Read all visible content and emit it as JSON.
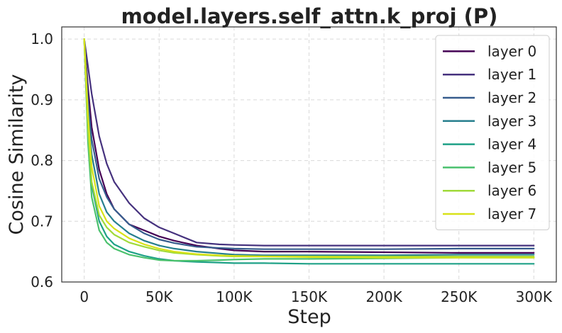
{
  "chart_data": {
    "type": "line",
    "title": "model.layers.self_attn.k_proj (P)",
    "xlabel": "Step",
    "ylabel": "Cosine Similarity",
    "xlim": [
      -15000,
      315000
    ],
    "ylim": [
      0.6,
      1.02
    ],
    "xticks": [
      0,
      50000,
      100000,
      150000,
      200000,
      250000,
      300000
    ],
    "xtick_labels": [
      "0",
      "50K",
      "100K",
      "150K",
      "200K",
      "250K",
      "300K"
    ],
    "yticks": [
      0.6,
      0.7,
      0.8,
      0.9,
      1.0
    ],
    "ytick_labels": [
      "0.6",
      "0.7",
      "0.8",
      "0.9",
      "1.0"
    ],
    "grid": true,
    "legend_position": "top-right",
    "series": [
      {
        "name": "layer 0",
        "color": "#440154",
        "x": [
          0,
          2500,
          5000,
          10000,
          15000,
          20000,
          30000,
          40000,
          50000,
          60000,
          75000,
          90000,
          100000,
          120000,
          150000,
          200000,
          250000,
          300000
        ],
        "y": [
          1.0,
          0.92,
          0.855,
          0.785,
          0.745,
          0.72,
          0.695,
          0.685,
          0.675,
          0.668,
          0.66,
          0.655,
          0.652,
          0.65,
          0.65,
          0.649,
          0.648,
          0.648
        ]
      },
      {
        "name": "layer 1",
        "color": "#46327e",
        "x": [
          0,
          2500,
          5000,
          10000,
          15000,
          20000,
          30000,
          40000,
          50000,
          60000,
          75000,
          90000,
          100000,
          120000,
          150000,
          200000,
          250000,
          300000
        ],
        "y": [
          1.0,
          0.955,
          0.91,
          0.84,
          0.795,
          0.765,
          0.73,
          0.705,
          0.69,
          0.68,
          0.665,
          0.662,
          0.661,
          0.66,
          0.66,
          0.66,
          0.66,
          0.66
        ]
      },
      {
        "name": "layer 2",
        "color": "#365c8d",
        "x": [
          0,
          2500,
          5000,
          10000,
          15000,
          20000,
          30000,
          40000,
          50000,
          60000,
          75000,
          90000,
          100000,
          120000,
          150000,
          200000,
          250000,
          300000
        ],
        "y": [
          1.0,
          0.9,
          0.835,
          0.77,
          0.74,
          0.72,
          0.695,
          0.68,
          0.67,
          0.664,
          0.658,
          0.656,
          0.655,
          0.654,
          0.654,
          0.654,
          0.655,
          0.655
        ]
      },
      {
        "name": "layer 3",
        "color": "#277f8e",
        "x": [
          0,
          2500,
          5000,
          10000,
          15000,
          20000,
          30000,
          40000,
          50000,
          60000,
          75000,
          90000,
          100000,
          120000,
          150000,
          200000,
          250000,
          300000
        ],
        "y": [
          1.0,
          0.88,
          0.81,
          0.745,
          0.715,
          0.7,
          0.68,
          0.668,
          0.66,
          0.655,
          0.65,
          0.647,
          0.645,
          0.644,
          0.644,
          0.644,
          0.645,
          0.645
        ]
      },
      {
        "name": "layer 4",
        "color": "#1fa187",
        "x": [
          0,
          2500,
          5000,
          10000,
          15000,
          20000,
          30000,
          40000,
          50000,
          60000,
          75000,
          90000,
          100000,
          120000,
          150000,
          200000,
          250000,
          300000
        ],
        "y": [
          1.0,
          0.84,
          0.76,
          0.7,
          0.675,
          0.662,
          0.65,
          0.643,
          0.638,
          0.635,
          0.633,
          0.632,
          0.631,
          0.631,
          0.63,
          0.63,
          0.63,
          0.63
        ]
      },
      {
        "name": "layer 5",
        "color": "#4ac16d",
        "x": [
          0,
          2500,
          5000,
          10000,
          15000,
          20000,
          30000,
          40000,
          50000,
          60000,
          75000,
          90000,
          100000,
          120000,
          150000,
          200000,
          250000,
          300000
        ],
        "y": [
          1.0,
          0.83,
          0.74,
          0.685,
          0.665,
          0.655,
          0.645,
          0.64,
          0.636,
          0.635,
          0.635,
          0.636,
          0.637,
          0.638,
          0.638,
          0.639,
          0.64,
          0.64
        ]
      },
      {
        "name": "layer 6",
        "color": "#a0da39",
        "x": [
          0,
          2500,
          5000,
          10000,
          15000,
          20000,
          30000,
          40000,
          50000,
          60000,
          75000,
          90000,
          100000,
          120000,
          150000,
          200000,
          250000,
          300000
        ],
        "y": [
          1.0,
          0.85,
          0.765,
          0.71,
          0.69,
          0.678,
          0.665,
          0.658,
          0.652,
          0.648,
          0.645,
          0.643,
          0.642,
          0.642,
          0.642,
          0.642,
          0.642,
          0.642
        ]
      },
      {
        "name": "layer 7",
        "color": "#d8e219",
        "x": [
          0,
          2500,
          5000,
          10000,
          15000,
          20000,
          30000,
          40000,
          50000,
          60000,
          75000,
          90000,
          100000,
          120000,
          150000,
          200000,
          250000,
          300000
        ],
        "y": [
          1.0,
          0.875,
          0.79,
          0.725,
          0.7,
          0.688,
          0.672,
          0.662,
          0.655,
          0.65,
          0.646,
          0.644,
          0.643,
          0.642,
          0.641,
          0.64,
          0.64,
          0.64
        ]
      }
    ]
  }
}
